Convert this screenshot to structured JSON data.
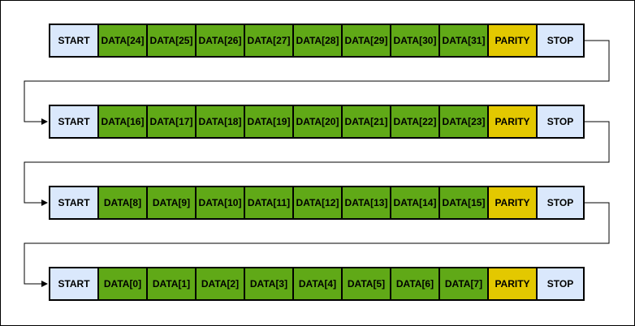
{
  "colors": {
    "start_stop": "#dae8fc",
    "data": "#60a917",
    "parity": "#e3c800",
    "border": "#000000"
  },
  "frames": [
    {
      "start": "START",
      "data": [
        "DATA[24]",
        "DATA[25]",
        "DATA[26]",
        "DATA[27]",
        "DATA[28]",
        "DATA[29]",
        "DATA[30]",
        "DATA[31]"
      ],
      "parity": "PARITY",
      "stop": "STOP"
    },
    {
      "start": "START",
      "data": [
        "DATA[16]",
        "DATA[17]",
        "DATA[18]",
        "DATA[19]",
        "DATA[20]",
        "DATA[21]",
        "DATA[22]",
        "DATA[23]"
      ],
      "parity": "PARITY",
      "stop": "STOP"
    },
    {
      "start": "START",
      "data": [
        "DATA[8]",
        "DATA[9]",
        "DATA[10]",
        "DATA[11]",
        "DATA[12]",
        "DATA[13]",
        "DATA[14]",
        "DATA[15]"
      ],
      "parity": "PARITY",
      "stop": "STOP"
    },
    {
      "start": "START",
      "data": [
        "DATA[0]",
        "DATA[1]",
        "DATA[2]",
        "DATA[3]",
        "DATA[4]",
        "DATA[5]",
        "DATA[6]",
        "DATA[7]"
      ],
      "parity": "PARITY",
      "stop": "STOP"
    }
  ]
}
